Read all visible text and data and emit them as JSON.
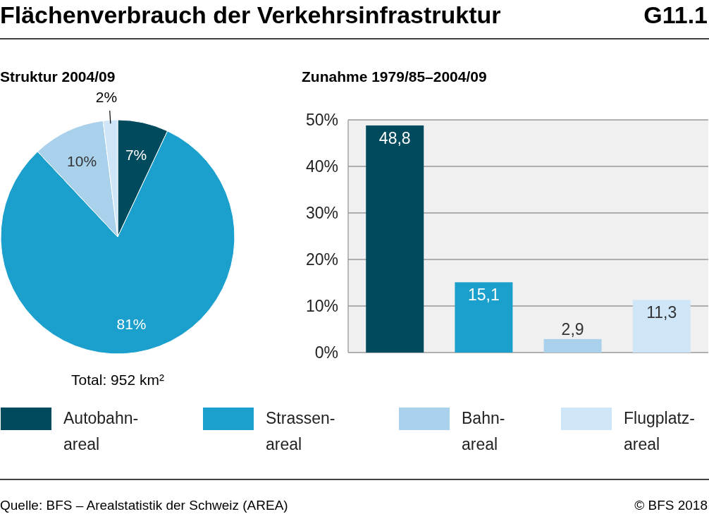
{
  "chart_data": [
    {
      "type": "pie",
      "title": "Struktur 2004/09",
      "categories": [
        "Autobahn-\nareal",
        "Strassen-\nareal",
        "Bahn-\nareal",
        "Flugplatz-\nareal"
      ],
      "values": [
        7,
        81,
        10,
        2
      ],
      "value_labels": [
        "7%",
        "81%",
        "10%",
        "2%"
      ],
      "colors": [
        "#004a5e",
        "#1b9fcc",
        "#a9d1ec",
        "#cfe5f8"
      ],
      "legend": "bottom",
      "annotations": [
        "Flächenverbrauch der Verkehrsinfrastruktur",
        "G11.1",
        "Total: 952 km²",
        "Quelle: BFS – Arealstatistik der Schweiz (AREA)",
        "© BFS 2018"
      ]
    },
    {
      "type": "bar",
      "title": "Zunahme 1979/85–2004/09",
      "categories": [
        null,
        null,
        null,
        null
      ],
      "values": [
        48.8,
        15.1,
        2.9,
        11.3
      ],
      "value_labels": [
        "48,8",
        "15,1",
        "2,9",
        "11,3"
      ],
      "colors": [
        "#004a5e",
        "#1b9fcc",
        "#a9d1ec",
        "#cfe5f8"
      ],
      "ylim": [
        0,
        50
      ],
      "yticks": [
        {
          "value": 0,
          "label": "0%"
        },
        {
          "value": 10,
          "label": "10%"
        },
        {
          "value": 20,
          "label": "20%"
        },
        {
          "value": 30,
          "label": "30%"
        },
        {
          "value": 40,
          "label": "40%"
        },
        {
          "value": 50,
          "label": "50%"
        }
      ],
      "grid": "y"
    }
  ]
}
